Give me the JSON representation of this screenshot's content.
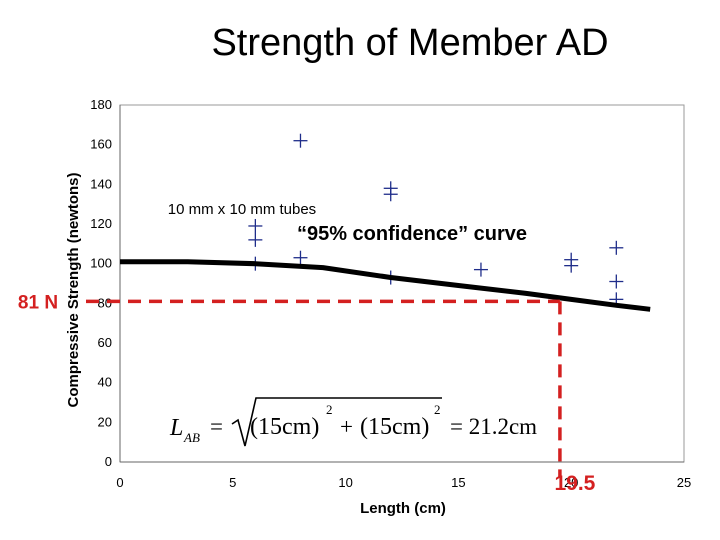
{
  "title": "Strength of Member AD",
  "chart_data": {
    "type": "scatter",
    "title": "Strength of Member AD",
    "xlabel": "Length (cm)",
    "ylabel": "Compressive Strength (newtons)",
    "xlim": [
      0,
      25
    ],
    "ylim": [
      0,
      180
    ],
    "xticks": [
      0,
      5,
      10,
      15,
      20,
      25
    ],
    "yticks": [
      0,
      20,
      40,
      60,
      80,
      100,
      120,
      140,
      160,
      180
    ],
    "grid": false,
    "series": [
      {
        "marker": "plus",
        "color": "#1f2d8a",
        "points": [
          {
            "x": 6,
            "y": 119
          },
          {
            "x": 6,
            "y": 112
          },
          {
            "x": 6,
            "y": 100
          },
          {
            "x": 8,
            "y": 162
          },
          {
            "x": 8,
            "y": 103
          },
          {
            "x": 12,
            "y": 138
          },
          {
            "x": 12,
            "y": 135
          },
          {
            "x": 12,
            "y": 93
          },
          {
            "x": 16,
            "y": 97
          },
          {
            "x": 20,
            "y": 102
          },
          {
            "x": 20,
            "y": 99
          },
          {
            "x": 22,
            "y": 108
          },
          {
            "x": 22,
            "y": 91
          },
          {
            "x": 22,
            "y": 82
          }
        ]
      }
    ],
    "curve": {
      "label": "“95% confidence” curve",
      "color": "#000000",
      "points": [
        {
          "x": 0,
          "y": 101
        },
        {
          "x": 3,
          "y": 101
        },
        {
          "x": 6,
          "y": 100
        },
        {
          "x": 9,
          "y": 98
        },
        {
          "x": 12,
          "y": 93
        },
        {
          "x": 15,
          "y": 89
        },
        {
          "x": 18,
          "y": 85
        },
        {
          "x": 20,
          "y": 82
        },
        {
          "x": 22,
          "y": 79
        },
        {
          "x": 23.5,
          "y": 77
        }
      ]
    },
    "annotations": {
      "tubes_label": "10 mm x 10 mm tubes",
      "y_marker_label": "81 N",
      "y_marker_value": 81,
      "x_marker_label": "19.5",
      "x_marker_value": 19.5,
      "formula": {
        "lhs": "L",
        "lhs_sub": "AB",
        "eq": "=",
        "term1": "(15cm)",
        "exp1": "2",
        "plus": "+",
        "term2": "(15cm)",
        "exp2": "2",
        "result": "= 21.2cm"
      },
      "marker_color": "#d42020"
    }
  }
}
